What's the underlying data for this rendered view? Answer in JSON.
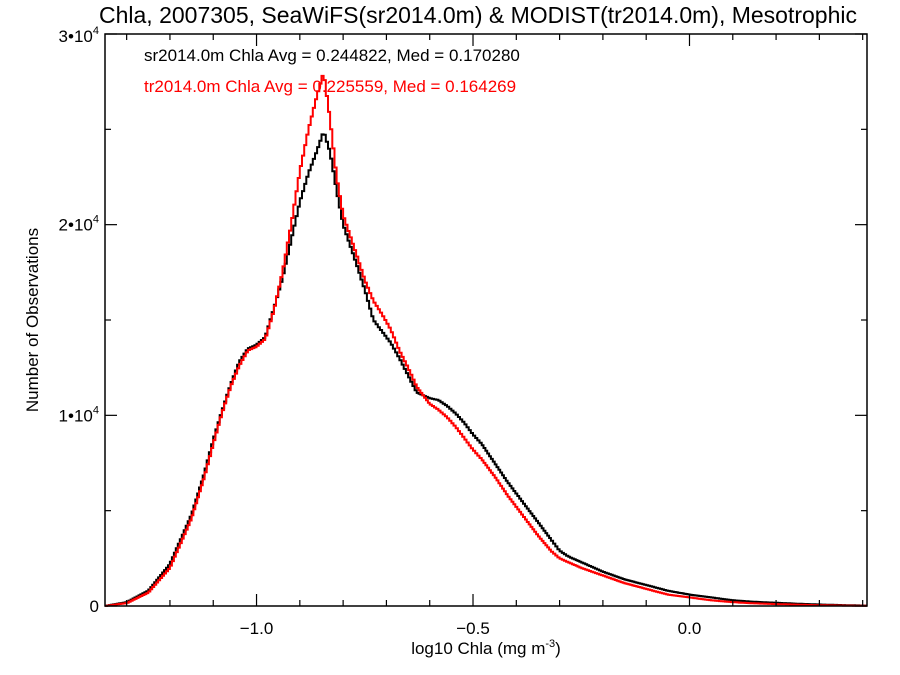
{
  "chart_data": {
    "type": "line",
    "title": "Chla, 2007305, SeaWiFS(sr2014.0m) & MODIST(tr2014.0m), Mesotrophic",
    "xlabel_main": "log10 Chla (mg m",
    "xlabel_sup": "-3",
    "xlabel_close": ")",
    "ylabel": "Number of Observations",
    "xlim": [
      -1.35,
      0.41
    ],
    "ylim": [
      0,
      30000
    ],
    "x_ticks": [
      {
        "value": -1.0,
        "label": "−1.0"
      },
      {
        "value": -0.5,
        "label": "−0.5"
      },
      {
        "value": 0.0,
        "label": "0.0"
      }
    ],
    "y_ticks": [
      {
        "value": 0,
        "base": "0",
        "exp": ""
      },
      {
        "value": 10000,
        "base": "1•10",
        "exp": "4"
      },
      {
        "value": 20000,
        "base": "2•10",
        "exp": "4"
      },
      {
        "value": 30000,
        "base": "3•10",
        "exp": "4"
      }
    ],
    "annotations": [
      {
        "text": "sr2014.0m Chla Avg = 0.244822, Med = 0.170280",
        "color": "#000000"
      },
      {
        "text": "tr2014.0m Chla Avg = 0.225559, Med = 0.164269",
        "color": "#ff0000"
      }
    ],
    "series": [
      {
        "color": "#000000",
        "x": [
          -1.35,
          -1.3,
          -1.25,
          -1.2,
          -1.15,
          -1.12,
          -1.1,
          -1.08,
          -1.06,
          -1.04,
          -1.02,
          -1.0,
          -0.98,
          -0.96,
          -0.94,
          -0.92,
          -0.9,
          -0.88,
          -0.86,
          -0.845,
          -0.83,
          -0.815,
          -0.8,
          -0.785,
          -0.77,
          -0.75,
          -0.73,
          -0.71,
          -0.69,
          -0.67,
          -0.65,
          -0.63,
          -0.6,
          -0.58,
          -0.56,
          -0.54,
          -0.52,
          -0.5,
          -0.48,
          -0.45,
          -0.42,
          -0.38,
          -0.35,
          -0.32,
          -0.3,
          -0.28,
          -0.25,
          -0.2,
          -0.15,
          -0.1,
          -0.05,
          0.0,
          0.05,
          0.1,
          0.15,
          0.2,
          0.25,
          0.3,
          0.35,
          0.41
        ],
        "y": [
          0,
          200,
          800,
          2200,
          4800,
          7000,
          8700,
          10200,
          11600,
          12800,
          13500,
          13700,
          14100,
          15600,
          17200,
          19200,
          21200,
          22700,
          23900,
          24900,
          23800,
          21800,
          20000,
          19000,
          18000,
          16600,
          15000,
          14400,
          13800,
          13000,
          12100,
          11200,
          10900,
          10800,
          10500,
          10100,
          9600,
          9000,
          8500,
          7500,
          6500,
          5300,
          4400,
          3500,
          2900,
          2600,
          2300,
          1800,
          1400,
          1100,
          800,
          600,
          450,
          300,
          220,
          170,
          120,
          80,
          50,
          20
        ]
      },
      {
        "color": "#ff0000",
        "x": [
          -1.35,
          -1.3,
          -1.25,
          -1.2,
          -1.15,
          -1.12,
          -1.1,
          -1.08,
          -1.06,
          -1.04,
          -1.02,
          -1.0,
          -0.98,
          -0.96,
          -0.94,
          -0.92,
          -0.9,
          -0.88,
          -0.86,
          -0.845,
          -0.83,
          -0.815,
          -0.8,
          -0.785,
          -0.77,
          -0.75,
          -0.73,
          -0.71,
          -0.69,
          -0.67,
          -0.65,
          -0.63,
          -0.6,
          -0.58,
          -0.56,
          -0.54,
          -0.52,
          -0.5,
          -0.48,
          -0.45,
          -0.42,
          -0.38,
          -0.35,
          -0.32,
          -0.3,
          -0.28,
          -0.25,
          -0.2,
          -0.15,
          -0.1,
          -0.05,
          0.0,
          0.05,
          0.1,
          0.15,
          0.2,
          0.25,
          0.3,
          0.35,
          0.41
        ],
        "y": [
          0,
          150,
          700,
          2000,
          4600,
          6800,
          8500,
          10100,
          11500,
          12600,
          13400,
          13600,
          14000,
          15500,
          17500,
          20000,
          22800,
          25000,
          26800,
          28000,
          25500,
          22500,
          20500,
          19500,
          18500,
          17100,
          16000,
          15300,
          14500,
          13400,
          12500,
          11500,
          10600,
          10300,
          9900,
          9400,
          8800,
          8200,
          7700,
          6800,
          5800,
          4600,
          3700,
          2900,
          2500,
          2300,
          2000,
          1600,
          1200,
          900,
          600,
          450,
          300,
          200,
          140,
          100,
          70,
          40,
          25,
          10
        ]
      }
    ]
  }
}
